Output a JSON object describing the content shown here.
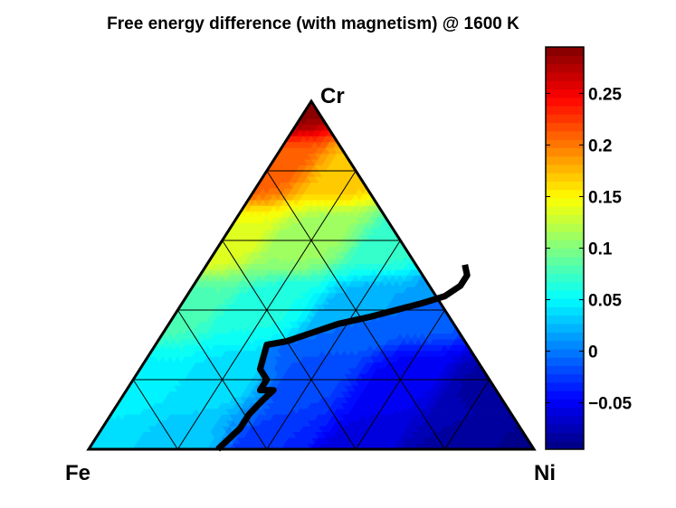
{
  "chart_data": {
    "type": "heatmap",
    "subtype": "ternary-contour",
    "title": "Free energy difference (with magnetism) @ 1600 K",
    "vertices": {
      "left": "Fe",
      "right": "Ni",
      "top": "Cr"
    },
    "grid_divisions": 5,
    "grid_fractions": [
      0.2,
      0.4,
      0.6,
      0.8
    ],
    "colorbar": {
      "colormap": "jet",
      "range": [
        -0.095,
        0.295
      ],
      "ticks": [
        -0.05,
        0,
        0.05,
        0.1,
        0.15,
        0.2,
        0.25
      ],
      "tick_labels": [
        "−0.05",
        "0",
        "0.05",
        "0.1",
        "0.15",
        "0.2",
        "0.25"
      ]
    },
    "zero_contour": {
      "label": "0",
      "points_NiCr": [
        [
          0.29,
          0.0
        ],
        [
          0.3,
          0.03
        ],
        [
          0.31,
          0.06
        ],
        [
          0.31,
          0.1
        ],
        [
          0.32,
          0.14
        ],
        [
          0.33,
          0.17
        ],
        [
          0.3,
          0.17
        ],
        [
          0.3,
          0.2
        ],
        [
          0.27,
          0.23
        ],
        [
          0.25,
          0.3
        ],
        [
          0.29,
          0.31
        ],
        [
          0.38,
          0.36
        ],
        [
          0.44,
          0.38
        ],
        [
          0.54,
          0.42
        ],
        [
          0.58,
          0.44
        ],
        [
          0.6,
          0.47
        ],
        [
          0.6,
          0.5
        ],
        [
          0.58,
          0.53
        ]
      ]
    },
    "model_samples_NiCr_value": [
      [
        0.0,
        1.0,
        0.29
      ],
      [
        0.0,
        0.8,
        0.21
      ],
      [
        0.2,
        0.8,
        0.17
      ],
      [
        0.0,
        0.6,
        0.14
      ],
      [
        0.2,
        0.6,
        0.11
      ],
      [
        0.4,
        0.6,
        0.07
      ],
      [
        0.0,
        0.4,
        0.08
      ],
      [
        0.2,
        0.4,
        0.06
      ],
      [
        0.4,
        0.4,
        0.02
      ],
      [
        0.6,
        0.4,
        -0.01
      ],
      [
        0.0,
        0.2,
        0.05
      ],
      [
        0.2,
        0.2,
        0.04
      ],
      [
        0.4,
        0.2,
        -0.02
      ],
      [
        0.6,
        0.2,
        -0.05
      ],
      [
        0.8,
        0.2,
        -0.08
      ],
      [
        0.0,
        0.0,
        0.04
      ],
      [
        0.2,
        0.0,
        0.03
      ],
      [
        0.4,
        0.0,
        -0.03
      ],
      [
        0.6,
        0.0,
        -0.06
      ],
      [
        0.8,
        0.0,
        -0.08
      ],
      [
        1.0,
        0.0,
        -0.09
      ]
    ]
  }
}
